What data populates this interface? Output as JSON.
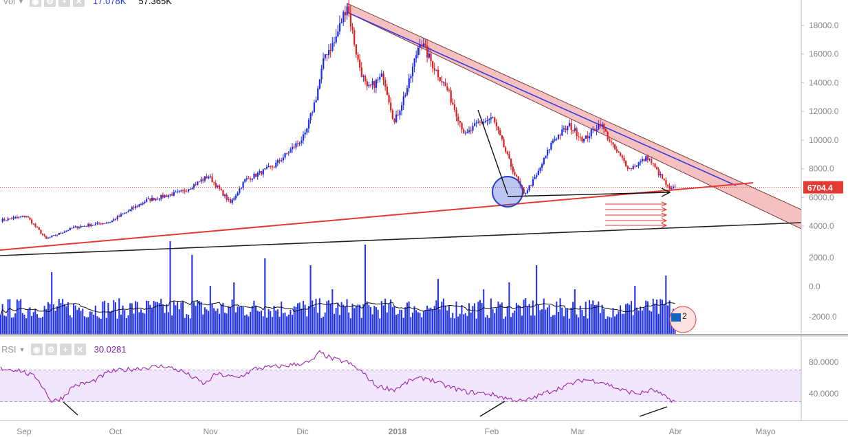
{
  "chart_data": {
    "type": "candlestick",
    "x_ticks": [
      "Sep",
      "Oct",
      "Nov",
      "Dic",
      "2018",
      "Feb",
      "Mar",
      "Abr",
      "Mayo"
    ],
    "price_axis": {
      "ticks": [
        18000,
        16000,
        14000,
        12000,
        10000,
        8000,
        6000,
        4000
      ],
      "tick_labels": [
        "18000.0",
        "16000.0",
        "14000.0",
        "12000.0",
        "10000.0",
        "8000.0",
        "6000.0",
        "4000.0"
      ],
      "current_price_label": "6704.4",
      "current_price": 6704.4
    },
    "volume_axis": {
      "tick_labels": [
        "2000.0",
        "0.0",
        "-2000.0"
      ]
    },
    "price_path_keypoints": [
      [
        0,
        4400
      ],
      [
        14,
        4700
      ],
      [
        25,
        3100
      ],
      [
        40,
        3900
      ],
      [
        60,
        4300
      ],
      [
        80,
        5800
      ],
      [
        100,
        6400
      ],
      [
        114,
        7500
      ],
      [
        126,
        5600
      ],
      [
        134,
        7200
      ],
      [
        150,
        8200
      ],
      [
        167,
        10300
      ],
      [
        173,
        13000
      ],
      [
        178,
        16000
      ],
      [
        183,
        16800
      ],
      [
        190,
        19500
      ],
      [
        196,
        15500
      ],
      [
        201,
        13500
      ],
      [
        210,
        14500
      ],
      [
        216,
        11200
      ],
      [
        224,
        14000
      ],
      [
        230,
        17000
      ],
      [
        236,
        15500
      ],
      [
        245,
        13500
      ],
      [
        255,
        10300
      ],
      [
        262,
        11200
      ],
      [
        270,
        11500
      ],
      [
        280,
        8200
      ],
      [
        287,
        6200
      ],
      [
        294,
        7500
      ],
      [
        303,
        10000
      ],
      [
        312,
        11000
      ],
      [
        320,
        10000
      ],
      [
        329,
        11200
      ],
      [
        336,
        9500
      ],
      [
        345,
        8000
      ],
      [
        355,
        8800
      ],
      [
        363,
        7300
      ],
      [
        367,
        6500
      ],
      [
        370,
        6704
      ]
    ],
    "volume_spikes": {
      "28": 18,
      "93": 27,
      "105": 23,
      "115": 14,
      "128": 15,
      "145": 22,
      "170": 20,
      "182": 13,
      "200": 26,
      "240": 16,
      "265": 13,
      "279": 15,
      "294": 20,
      "315": 13,
      "348": 14,
      "365": 17
    },
    "rsi": {
      "label": "RSI",
      "value_label": "30.0281",
      "ticks": [
        "80.0000",
        "40.0000"
      ],
      "tick_values": [
        80,
        40
      ],
      "band": [
        30,
        70
      ],
      "path_keypoints": [
        [
          0,
          72
        ],
        [
          10,
          70
        ],
        [
          20,
          60
        ],
        [
          28,
          30
        ],
        [
          34,
          35
        ],
        [
          40,
          50
        ],
        [
          50,
          55
        ],
        [
          60,
          68
        ],
        [
          75,
          72
        ],
        [
          90,
          75
        ],
        [
          100,
          68
        ],
        [
          112,
          52
        ],
        [
          118,
          65
        ],
        [
          130,
          60
        ],
        [
          140,
          72
        ],
        [
          155,
          75
        ],
        [
          170,
          80
        ],
        [
          175,
          92
        ],
        [
          182,
          84
        ],
        [
          190,
          80
        ],
        [
          198,
          68
        ],
        [
          206,
          50
        ],
        [
          216,
          45
        ],
        [
          226,
          58
        ],
        [
          234,
          60
        ],
        [
          244,
          50
        ],
        [
          256,
          42
        ],
        [
          268,
          40
        ],
        [
          276,
          35
        ],
        [
          287,
          30
        ],
        [
          300,
          42
        ],
        [
          310,
          50
        ],
        [
          320,
          58
        ],
        [
          330,
          55
        ],
        [
          340,
          45
        ],
        [
          350,
          40
        ],
        [
          358,
          45
        ],
        [
          365,
          35
        ],
        [
          370,
          30
        ]
      ]
    },
    "volume_label": "Vol",
    "volume_values": [
      "17.078K",
      "57.365K"
    ],
    "badge_number": "2",
    "colors": {
      "up": "#1a2cf0",
      "down": "#e01e1e",
      "channel_fill": "#f3b5b5",
      "channel_line_blue": "#3a3ad8",
      "support_red": "#e53935",
      "support_black": "#222222",
      "rsi_line": "#9c27b0",
      "rsi_band": "#f1e6fb",
      "axis_text": "#888888"
    }
  }
}
